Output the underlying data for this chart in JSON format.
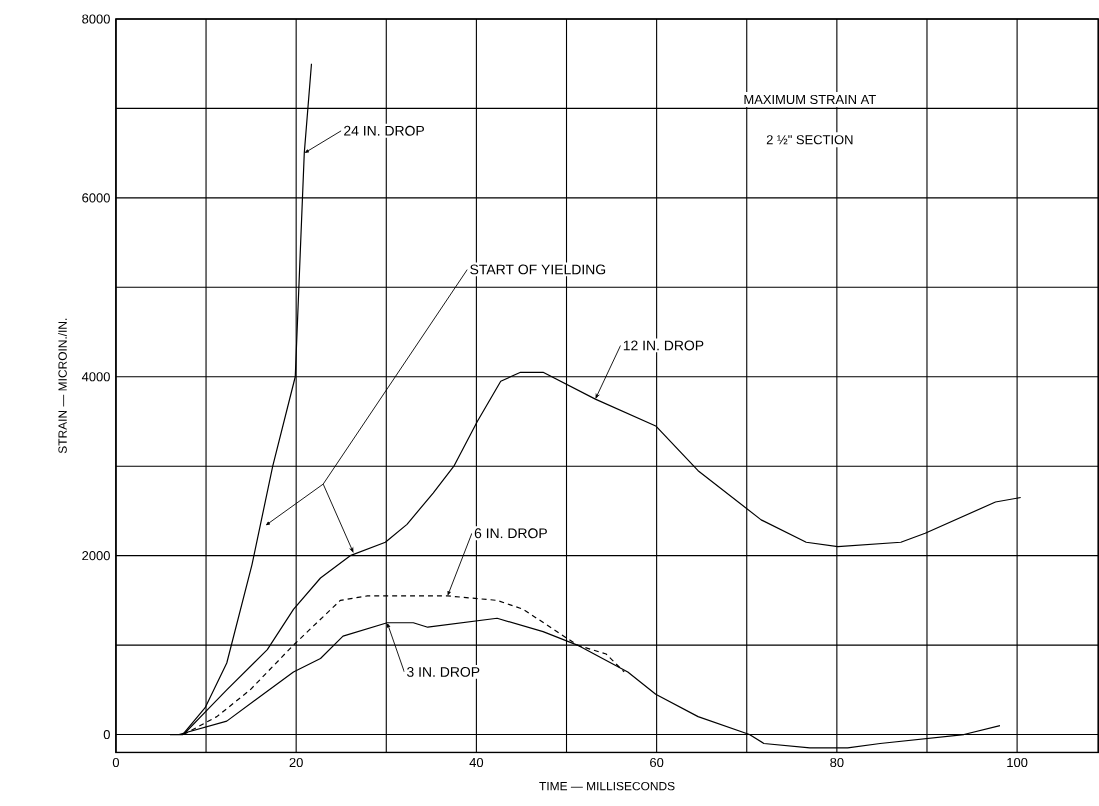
{
  "chart_data": {
    "type": "line",
    "xlabel": "TIME —  MILLISECONDS",
    "ylabel": "STRAIN — MICROIN./IN.",
    "xlim": [
      0,
      109
    ],
    "ylim": [
      -200,
      8000
    ],
    "xticks": [
      0,
      {
        "value": 10,
        "label": null
      },
      20,
      {
        "value": 30,
        "label": null
      },
      40,
      {
        "value": 50,
        "label": null
      },
      60,
      {
        "value": 70,
        "label": null
      },
      80,
      {
        "value": 90,
        "label": null
      },
      100
    ],
    "yticks": [
      0,
      {
        "value": 1000,
        "label": null
      },
      2000,
      {
        "value": 3000,
        "label": null
      },
      4000,
      {
        "value": 5000,
        "label": null
      },
      6000,
      {
        "value": 7000,
        "label": null
      },
      8000
    ],
    "grid": true,
    "annotations": [
      "MAXIMUM   STRAIN   AT",
      "2 ½\"   SECTION",
      "START   OF   YIELDING"
    ],
    "series": [
      {
        "name": "24 IN.  DROP",
        "color": "#000000",
        "line_style": "solid",
        "x": [
          6,
          7.4,
          9.9,
          12.3,
          15.1,
          17.4,
          19.9,
          20.3,
          20.9,
          21.7
        ],
        "values": [
          0,
          0,
          300,
          800,
          1900,
          3000,
          4000,
          5000,
          6500,
          7500
        ]
      },
      {
        "name": "12 IN.  DROP",
        "color": "#000000",
        "line_style": "solid",
        "x": [
          7.5,
          9.9,
          12.3,
          16.8,
          19.7,
          22.7,
          26,
          29.9,
          32.3,
          35.2,
          37.5,
          40.1,
          42.7,
          44.9,
          47.4,
          53.2,
          59.9,
          64.6,
          71.6,
          76.6,
          80.1,
          87.1,
          89.8,
          97.6,
          100.4
        ],
        "values": [
          0,
          250,
          500,
          950,
          1400,
          1750,
          2000,
          2150,
          2350,
          2700,
          3000,
          3500,
          3950,
          4050,
          4050,
          3750,
          3450,
          2950,
          2400,
          2150,
          2100,
          2150,
          2250,
          2600,
          2650
        ]
      },
      {
        "name": "6 IN.  DROP",
        "color": "#000000",
        "line_style": "dashed",
        "x": [
          7.5,
          11.2,
          14.9,
          19.7,
          24.9,
          27.9,
          36.8,
          42.3,
          45.2,
          51.2,
          54.4,
          56.4
        ],
        "values": [
          0,
          200,
          500,
          1000,
          1500,
          1550,
          1550,
          1500,
          1400,
          1000,
          900,
          700
        ]
      },
      {
        "name": "3 IN.  DROP",
        "color": "#000000",
        "line_style": "solid",
        "x": [
          7,
          12.3,
          19.7,
          22.7,
          25.2,
          30.1,
          33,
          34.6,
          42.3,
          47.4,
          51.2,
          56.8,
          59.9,
          64.6,
          70.3,
          71.9,
          77,
          81.2,
          84.8,
          94.1,
          98.1
        ],
        "values": [
          0,
          150,
          700,
          850,
          1100,
          1250,
          1250,
          1200,
          1300,
          1150,
          1000,
          700,
          450,
          200,
          0,
          -100,
          -150,
          -150,
          -100,
          0,
          100
        ]
      }
    ]
  }
}
